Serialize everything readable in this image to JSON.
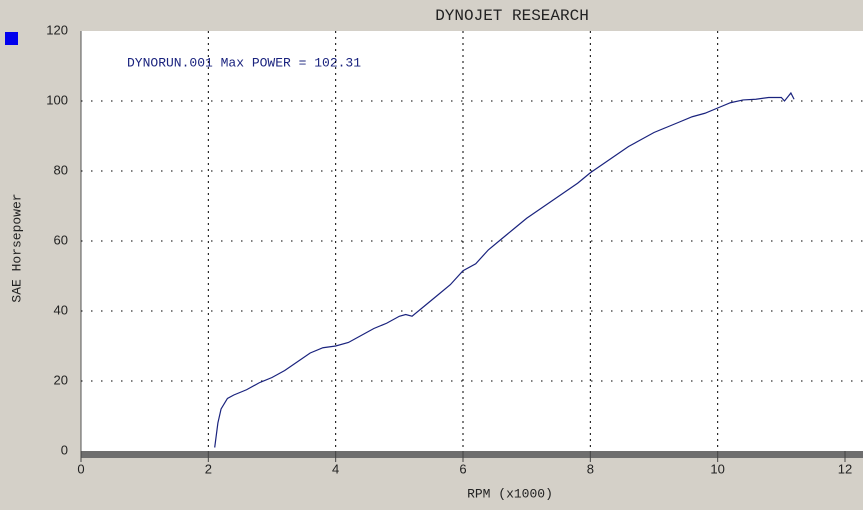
{
  "chart_data": {
    "type": "line",
    "title": "DYNOJET RESEARCH",
    "annotation": "DYNORUN.001 Max POWER = 102.31",
    "x_label": "RPM (x1000)",
    "y_label": "SAE Horsepower",
    "xlim": [
      0,
      12
    ],
    "xticks": [
      0,
      2,
      4,
      6,
      8,
      10,
      12
    ],
    "ylim": [
      0,
      120
    ],
    "yticks": [
      0,
      20,
      40,
      60,
      80,
      100,
      120
    ],
    "grid": true,
    "x": [
      2.1,
      2.15,
      2.2,
      2.3,
      2.4,
      2.6,
      2.8,
      3.0,
      3.2,
      3.4,
      3.6,
      3.8,
      4.0,
      4.2,
      4.4,
      4.6,
      4.8,
      5.0,
      5.1,
      5.2,
      5.4,
      5.6,
      5.8,
      6.0,
      6.2,
      6.4,
      6.6,
      6.8,
      7.0,
      7.2,
      7.4,
      7.6,
      7.8,
      7.9,
      8.0,
      8.2,
      8.4,
      8.6,
      8.8,
      9.0,
      9.2,
      9.4,
      9.6,
      9.8,
      10.0,
      10.2,
      10.4,
      10.6,
      10.8,
      11.0,
      11.05,
      11.15,
      11.2
    ],
    "series": [
      {
        "color": "#1a237e",
        "values": [
          1,
          8,
          12,
          15,
          16,
          17.5,
          19.5,
          21,
          23,
          25.5,
          28,
          29.5,
          30,
          31,
          33,
          35,
          36.5,
          38.5,
          39,
          38.5,
          41.5,
          44.5,
          47.5,
          51.5,
          53.5,
          57.5,
          60.5,
          63.5,
          66.5,
          69,
          71.5,
          74,
          76.5,
          78,
          79.5,
          82,
          84.5,
          87,
          89,
          91,
          92.5,
          94,
          95.5,
          96.5,
          98,
          99.5,
          100.3,
          100.5,
          101,
          101,
          100,
          102.3,
          100.5
        ]
      }
    ]
  }
}
